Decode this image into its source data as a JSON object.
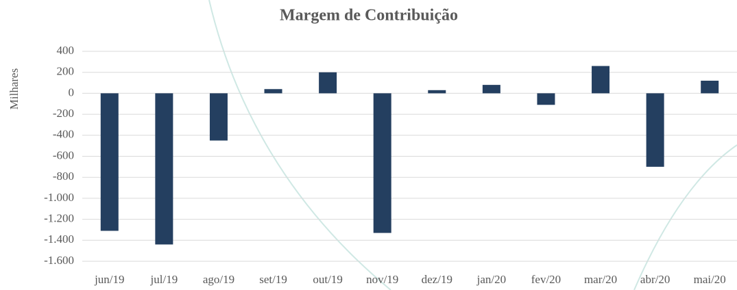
{
  "chart_data": {
    "type": "bar",
    "title": "Margem de Contribuição",
    "y_label": "Milhares",
    "categories": [
      "jun/19",
      "jul/19",
      "ago/19",
      "set/19",
      "out/19",
      "nov/19",
      "dez/19",
      "jan/20",
      "fev/20",
      "mar/20",
      "abr/20",
      "mai/20"
    ],
    "values": [
      -1310,
      -1440,
      -450,
      40,
      200,
      -1330,
      30,
      80,
      -110,
      260,
      -700,
      120
    ],
    "color": "#243f60",
    "ylim": [
      -1600,
      400
    ],
    "yticks": [
      {
        "value": -1600,
        "label": "-1.600"
      },
      {
        "value": -1400,
        "label": "-1.400"
      },
      {
        "value": -1200,
        "label": "-1.200"
      },
      {
        "value": -1000,
        "label": "-1.000"
      },
      -800,
      -600,
      -400,
      -200,
      0,
      200,
      400
    ],
    "grid": true
  }
}
